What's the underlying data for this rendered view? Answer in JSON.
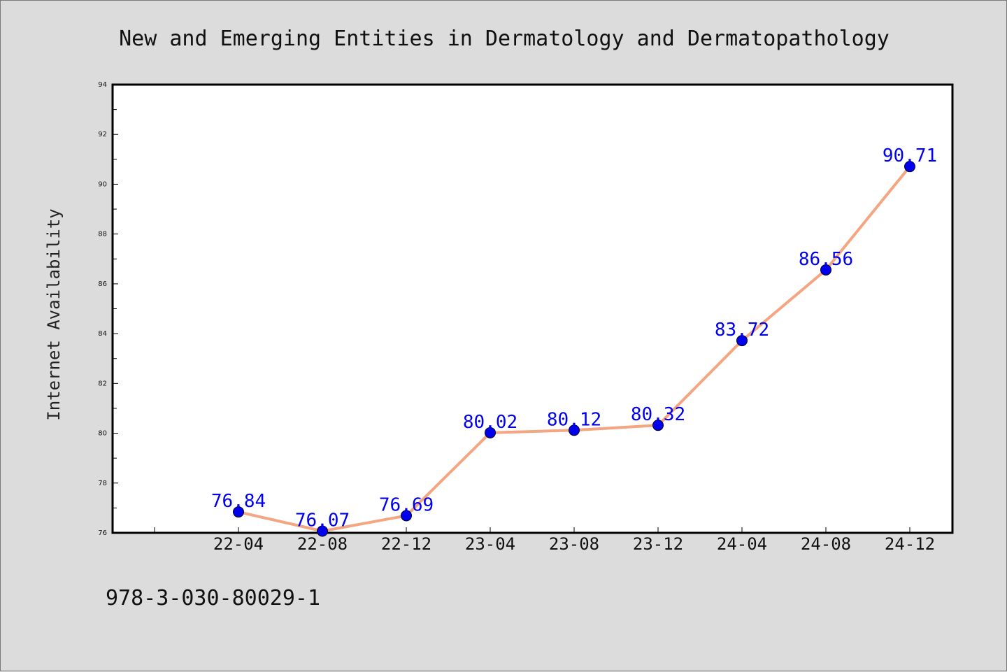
{
  "chart_data": {
    "type": "line",
    "title": "New and Emerging Entities in Dermatology and Dermatopathology",
    "xlabel": "",
    "ylabel": "Internet Availability",
    "categories": [
      "22-04",
      "22-08",
      "22-12",
      "23-04",
      "23-08",
      "23-12",
      "24-04",
      "24-08",
      "24-12"
    ],
    "series": [
      {
        "values": [
          76.84,
          76.07,
          76.69,
          80.02,
          80.12,
          80.32,
          83.72,
          86.56,
          90.71
        ],
        "labels": [
          "76.84",
          "76.07",
          "76.69",
          "80.02",
          "80.12",
          "80.32",
          "83.72",
          "86.56",
          "90.71"
        ],
        "line_color": "#f4a582",
        "marker_color": "#0000ee",
        "label_color": "#0000ee"
      }
    ],
    "ylim": [
      76,
      94
    ],
    "yticks": [
      "76",
      "78",
      "80",
      "82",
      "84",
      "86",
      "88",
      "90",
      "92",
      "94"
    ],
    "grid": false,
    "legend": "none"
  },
  "footer": {
    "isbn": "978-3-030-80029-1"
  }
}
